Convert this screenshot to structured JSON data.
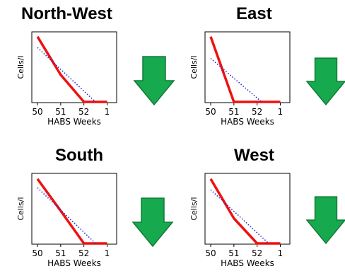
{
  "colors": {
    "trend_line": "#ee1111",
    "reference_line": "#2a2acc",
    "arrow_fill": "#17a94d",
    "arrow_stroke": "#0f7a36",
    "axis": "#000000"
  },
  "arrow_icon": "down-arrow-icon",
  "chart_data": [
    {
      "type": "line",
      "title": "North-West",
      "xlabel": "HABS Weeks",
      "ylabel": "Cells/l",
      "categories": [
        "50",
        "51",
        "52",
        "1"
      ],
      "ylim": [
        0,
        1
      ],
      "grid": false,
      "series": [
        {
          "style": "solid",
          "color": "#ee1111",
          "x": [
            0,
            1,
            2,
            3
          ],
          "y": [
            0.96,
            0.4,
            0.0,
            0.0
          ]
        },
        {
          "style": "dotted",
          "color": "#2a2acc",
          "x": [
            0,
            2.5
          ],
          "y": [
            0.8,
            0.0
          ]
        }
      ],
      "trend": "down"
    },
    {
      "type": "line",
      "title": "East",
      "xlabel": "HABS Weeks",
      "ylabel": "Cells/l",
      "categories": [
        "50",
        "51",
        "52",
        "1"
      ],
      "ylim": [
        0,
        1
      ],
      "grid": false,
      "series": [
        {
          "style": "solid",
          "color": "#ee1111",
          "x": [
            0,
            1,
            2,
            3
          ],
          "y": [
            0.96,
            0.0,
            0.0,
            0.0
          ]
        },
        {
          "style": "dotted",
          "color": "#2a2acc",
          "x": [
            0,
            2.2
          ],
          "y": [
            0.64,
            0.0
          ]
        }
      ],
      "trend": "down"
    },
    {
      "type": "line",
      "title": "South",
      "xlabel": "HABS Weeks",
      "ylabel": "Cells/l",
      "categories": [
        "50",
        "51",
        "52",
        "1"
      ],
      "ylim": [
        0,
        1
      ],
      "grid": false,
      "series": [
        {
          "style": "solid",
          "color": "#ee1111",
          "x": [
            0,
            1,
            2,
            3
          ],
          "y": [
            0.95,
            0.48,
            0.0,
            0.0
          ]
        },
        {
          "style": "dotted",
          "color": "#2a2acc",
          "x": [
            0,
            2.5
          ],
          "y": [
            0.82,
            0.0
          ]
        }
      ],
      "trend": "down"
    },
    {
      "type": "line",
      "title": "West",
      "xlabel": "HABS Weeks",
      "ylabel": "Cells/l",
      "categories": [
        "50",
        "51",
        "52",
        "1"
      ],
      "ylim": [
        0,
        1
      ],
      "grid": false,
      "series": [
        {
          "style": "solid",
          "color": "#ee1111",
          "x": [
            0,
            1,
            2,
            3
          ],
          "y": [
            0.95,
            0.37,
            0.0,
            0.0
          ]
        },
        {
          "style": "dotted",
          "color": "#2a2acc",
          "x": [
            0,
            2.5
          ],
          "y": [
            0.79,
            0.0
          ]
        }
      ],
      "trend": "down"
    }
  ]
}
